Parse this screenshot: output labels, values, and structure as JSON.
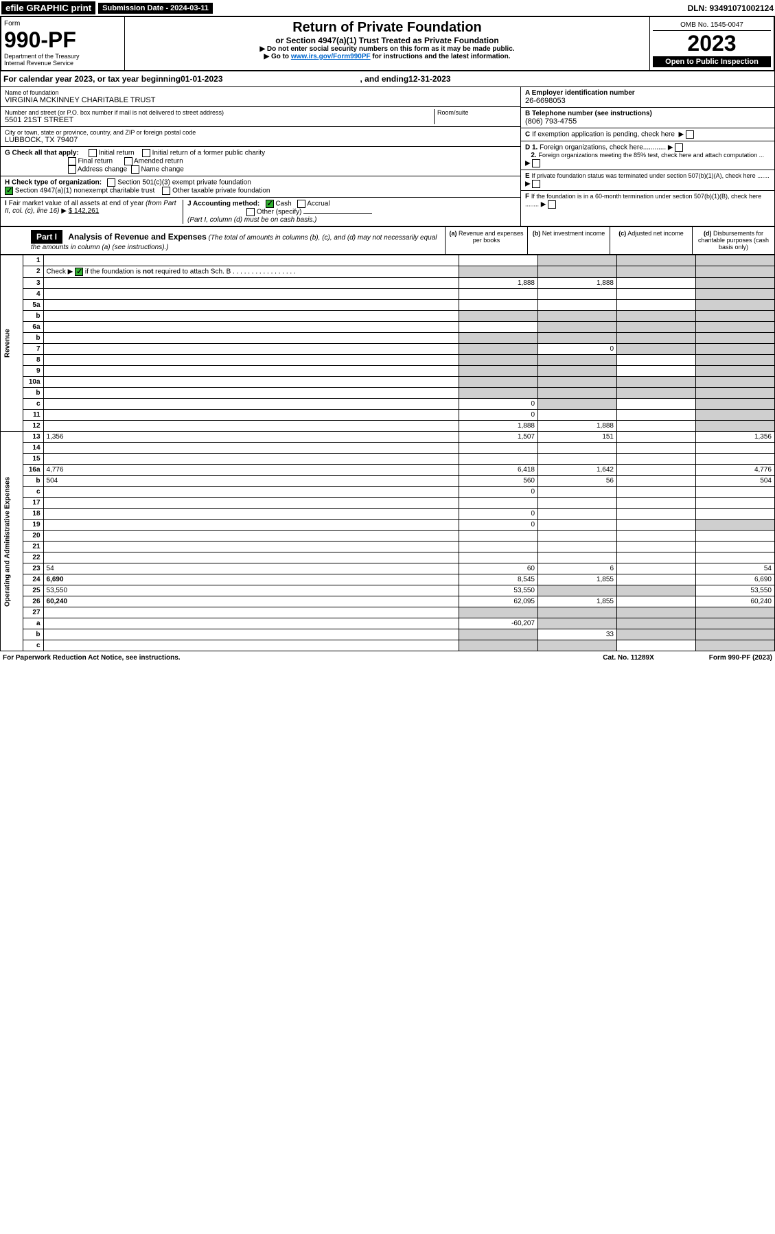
{
  "top": {
    "efile": "efile GRAPHIC print",
    "sub_label": "Submission Date - 2024-03-11",
    "dln": "DLN: 93491071002124"
  },
  "header": {
    "form_label": "Form",
    "form_num": "990-PF",
    "dept": "Department of the Treasury\nInternal Revenue Service",
    "title": "Return of Private Foundation",
    "subtitle": "or Section 4947(a)(1) Trust Treated as Private Foundation",
    "instr1": "▶ Do not enter social security numbers on this form as it may be made public.",
    "instr2_a": "▶ Go to ",
    "instr2_link": "www.irs.gov/Form990PF",
    "instr2_b": " for instructions and the latest information.",
    "omb": "OMB No. 1545-0047",
    "year": "2023",
    "open": "Open to Public Inspection"
  },
  "cal": {
    "prefix": "For calendar year 2023, or tax year beginning ",
    "begin": "01-01-2023",
    "mid": ", and ending ",
    "end": "12-31-2023"
  },
  "info": {
    "name_label": "Name of foundation",
    "name": "VIRGINIA MCKINNEY CHARITABLE TRUST",
    "addr_label": "Number and street (or P.O. box number if mail is not delivered to street address)",
    "addr": "5501 21ST STREET",
    "room_label": "Room/suite",
    "city_label": "City or town, state or province, country, and ZIP or foreign postal code",
    "city": "LUBBOCK, TX  79407",
    "a_label": "A Employer identification number",
    "a_val": "26-6698053",
    "b_label": "B Telephone number (see instructions)",
    "b_val": "(806) 793-4755",
    "c_label": "C If exemption application is pending, check here",
    "d1": "D 1. Foreign organizations, check here............",
    "d2": "2. Foreign organizations meeting the 85% test, check here and attach computation ...",
    "e_label": "E  If private foundation status was terminated under section 507(b)(1)(A), check here .......",
    "f_label": "F  If the foundation is in a 60-month termination under section 507(b)(1)(B), check here ........"
  },
  "g": {
    "label": "G Check all that apply:",
    "o1": "Initial return",
    "o2": "Initial return of a former public charity",
    "o3": "Final return",
    "o4": "Amended return",
    "o5": "Address change",
    "o6": "Name change"
  },
  "h": {
    "label": "H Check type of organization:",
    "o1": "Section 501(c)(3) exempt private foundation",
    "o2": "Section 4947(a)(1) nonexempt charitable trust",
    "o3": "Other taxable private foundation"
  },
  "i": {
    "label": "I Fair market value of all assets at end of year (from Part II, col. (c), line 16) ▶",
    "val": "$  142,261"
  },
  "j": {
    "label": "J Accounting method:",
    "o1": "Cash",
    "o2": "Accrual",
    "o3": "Other (specify)",
    "note": "(Part I, column (d) must be on cash basis.)"
  },
  "part1": {
    "hdr": "Part I",
    "title": "Analysis of Revenue and Expenses",
    "note": " (The total of amounts in columns (b), (c), and (d) may not necessarily equal the amounts in column (a) (see instructions).)",
    "col_a": "(a)   Revenue and expenses per books",
    "col_b": "(b)   Net investment income",
    "col_c": "(c)   Adjusted net income",
    "col_d": "(d)   Disbursements for charitable purposes (cash basis only)"
  },
  "sections": {
    "rev": "Revenue",
    "exp": "Operating and Administrative Expenses"
  },
  "rows": [
    {
      "n": "1",
      "d": "",
      "a": "",
      "b": "",
      "c": "",
      "sa": false,
      "sb": true,
      "sc": true,
      "sd": true
    },
    {
      "n": "2",
      "d": "",
      "a": "",
      "b": "",
      "c": "",
      "sa": true,
      "sb": true,
      "sc": true,
      "sd": true,
      "check": true
    },
    {
      "n": "3",
      "d": "",
      "a": "1,888",
      "b": "1,888",
      "c": "",
      "sd": true
    },
    {
      "n": "4",
      "d": "",
      "a": "",
      "b": "",
      "c": "",
      "sd": true
    },
    {
      "n": "5a",
      "d": "",
      "a": "",
      "b": "",
      "c": "",
      "sd": true
    },
    {
      "n": "b",
      "d": "",
      "a": "",
      "b": "",
      "c": "",
      "sa": true,
      "sb": true,
      "sc": true,
      "sd": true
    },
    {
      "n": "6a",
      "d": "",
      "a": "",
      "b": "",
      "c": "",
      "sb": true,
      "sc": true,
      "sd": true
    },
    {
      "n": "b",
      "d": "",
      "a": "",
      "b": "",
      "c": "",
      "sa": true,
      "sb": true,
      "sc": true,
      "sd": true
    },
    {
      "n": "7",
      "d": "",
      "a": "",
      "b": "0",
      "c": "",
      "sa": true,
      "sc": true,
      "sd": true
    },
    {
      "n": "8",
      "d": "",
      "a": "",
      "b": "",
      "c": "",
      "sa": true,
      "sb": true,
      "sd": true
    },
    {
      "n": "9",
      "d": "",
      "a": "",
      "b": "",
      "c": "",
      "sa": true,
      "sb": true,
      "sd": true
    },
    {
      "n": "10a",
      "d": "",
      "a": "",
      "b": "",
      "c": "",
      "sa": true,
      "sb": true,
      "sc": true,
      "sd": true
    },
    {
      "n": "b",
      "d": "",
      "a": "",
      "b": "",
      "c": "",
      "sa": true,
      "sb": true,
      "sc": true,
      "sd": true
    },
    {
      "n": "c",
      "d": "",
      "a": "0",
      "b": "",
      "c": "",
      "sb": true,
      "sd": true
    },
    {
      "n": "11",
      "d": "",
      "a": "0",
      "b": "",
      "c": "",
      "sd": true
    },
    {
      "n": "12",
      "d": "",
      "a": "1,888",
      "b": "1,888",
      "c": "",
      "sd": true,
      "bold": true
    },
    {
      "n": "13",
      "d": "1,356",
      "a": "1,507",
      "b": "151",
      "c": ""
    },
    {
      "n": "14",
      "d": "",
      "a": "",
      "b": "",
      "c": ""
    },
    {
      "n": "15",
      "d": "",
      "a": "",
      "b": "",
      "c": ""
    },
    {
      "n": "16a",
      "d": "4,776",
      "a": "6,418",
      "b": "1,642",
      "c": ""
    },
    {
      "n": "b",
      "d": "504",
      "a": "560",
      "b": "56",
      "c": ""
    },
    {
      "n": "c",
      "d": "",
      "a": "0",
      "b": "",
      "c": ""
    },
    {
      "n": "17",
      "d": "",
      "a": "",
      "b": "",
      "c": ""
    },
    {
      "n": "18",
      "d": "",
      "a": "0",
      "b": "",
      "c": ""
    },
    {
      "n": "19",
      "d": "",
      "a": "0",
      "b": "",
      "c": "",
      "sd": true
    },
    {
      "n": "20",
      "d": "",
      "a": "",
      "b": "",
      "c": ""
    },
    {
      "n": "21",
      "d": "",
      "a": "",
      "b": "",
      "c": ""
    },
    {
      "n": "22",
      "d": "",
      "a": "",
      "b": "",
      "c": ""
    },
    {
      "n": "23",
      "d": "54",
      "a": "60",
      "b": "6",
      "c": ""
    },
    {
      "n": "24",
      "d": "6,690",
      "a": "8,545",
      "b": "1,855",
      "c": "",
      "bold": true
    },
    {
      "n": "25",
      "d": "53,550",
      "a": "53,550",
      "b": "",
      "c": "",
      "sb": true,
      "sc": true
    },
    {
      "n": "26",
      "d": "60,240",
      "a": "62,095",
      "b": "1,855",
      "c": "",
      "bold": true
    },
    {
      "n": "27",
      "d": "",
      "a": "",
      "b": "",
      "c": "",
      "sa": true,
      "sb": true,
      "sc": true,
      "sd": true
    },
    {
      "n": "a",
      "d": "",
      "a": "-60,207",
      "b": "",
      "c": "",
      "bold": true,
      "sb": true,
      "sc": true,
      "sd": true
    },
    {
      "n": "b",
      "d": "",
      "a": "",
      "b": "33",
      "c": "",
      "bold": true,
      "sa": true,
      "sc": true,
      "sd": true
    },
    {
      "n": "c",
      "d": "",
      "a": "",
      "b": "",
      "c": "",
      "bold": true,
      "sa": true,
      "sb": true,
      "sd": true
    }
  ],
  "footer": {
    "left": "For Paperwork Reduction Act Notice, see instructions.",
    "mid": "Cat. No. 11289X",
    "right": "Form 990-PF (2023)"
  }
}
